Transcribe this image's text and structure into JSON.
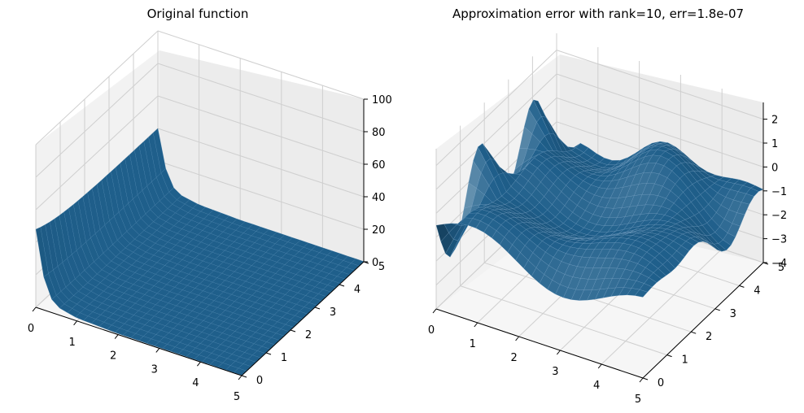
{
  "chart_data": [
    {
      "type": "surface3d",
      "title": "Original function",
      "x_ticks": [
        "0",
        "1",
        "2",
        "3",
        "4",
        "5"
      ],
      "y_ticks": [
        "0",
        "1",
        "2",
        "3",
        "4",
        "5"
      ],
      "z_ticks": [
        "0",
        "20",
        "40",
        "60",
        "80",
        "100"
      ],
      "xlim": [
        0,
        5
      ],
      "ylim": [
        0,
        5
      ],
      "zlim": [
        0,
        100
      ],
      "grid": true,
      "surface_color": "#1f5f8b",
      "surface_edge_color": "#4a86b4",
      "surface_profile": {
        "x": [
          0.0,
          0.25,
          0.5,
          1.0,
          2.0,
          5.0
        ],
        "z": [
          40,
          10,
          4,
          1.5,
          0.5,
          0.2
        ]
      }
    },
    {
      "type": "surface3d",
      "title": "Approximation error with rank=10, err=1.8e-07",
      "x_ticks": [
        "0",
        "1",
        "2",
        "3",
        "4",
        "5"
      ],
      "y_ticks": [
        "0",
        "1",
        "2",
        "3",
        "4",
        "5"
      ],
      "z_ticks": [
        "−4",
        "−3",
        "−2",
        "−1",
        "0",
        "1",
        "2"
      ],
      "xlim": [
        0,
        5
      ],
      "ylim": [
        0,
        5
      ],
      "zlim": [
        -4,
        2.7
      ],
      "grid": true,
      "surface_color": "#1f5f8b",
      "surface_edge_color": "#7fa9cc"
    }
  ]
}
